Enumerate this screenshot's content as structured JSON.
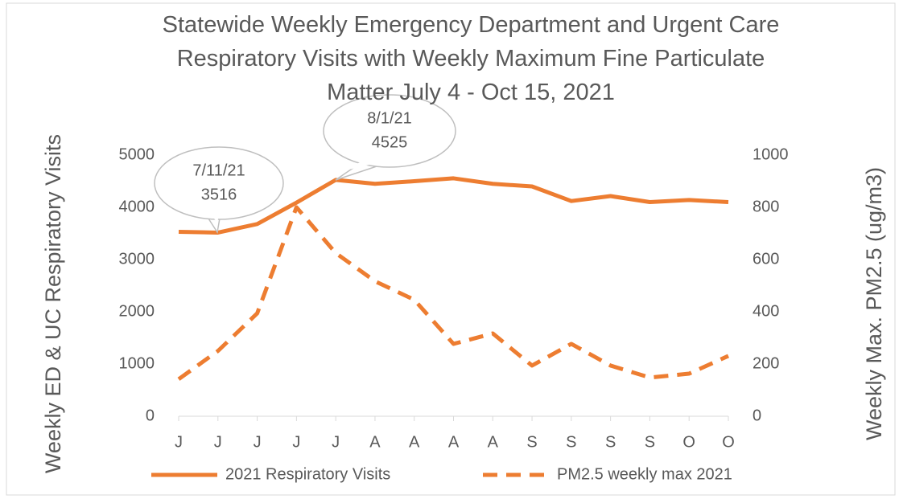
{
  "chart_data": {
    "type": "line",
    "title": "Statewide Weekly Emergency Department and Urgent Care Respiratory Visits with Weekly Maximum Fine Particulate Matter July 4 - Oct 15, 2021",
    "ylabel": "Weekly ED & UC Respiratory Visits",
    "y2label": "Weekly Max. PM2.5 (ug/m3)",
    "categories": [
      "J",
      "J",
      "J",
      "J",
      "J",
      "A",
      "A",
      "A",
      "A",
      "S",
      "S",
      "S",
      "S",
      "O",
      "O"
    ],
    "series": [
      {
        "name": "2021  Respiratory Visits",
        "color": "#ed7d31",
        "dash": false,
        "values": [
          3530,
          3516,
          3680,
          4090,
          4525,
          4450,
          4500,
          4555,
          4450,
          4400,
          4120,
          4215,
          4100,
          4140,
          4100
        ]
      },
      {
        "name": "PM2.5 weekly max 2021",
        "color": "#ed7d31",
        "dash": true,
        "axis": "y2",
        "values": [
          142,
          250,
          394,
          800,
          625,
          517,
          446,
          277,
          317,
          194,
          277,
          194,
          148,
          163,
          231
        ]
      }
    ],
    "ylim": [
      0,
      5000
    ],
    "yticks": [
      0,
      1000,
      2000,
      3000,
      4000,
      5000
    ],
    "y2lim": [
      0,
      1000
    ],
    "y2ticks": [
      0,
      200,
      400,
      600,
      800,
      1000
    ],
    "grid": false,
    "legend": "bottom",
    "annotations": [
      {
        "label": "7/11/21",
        "value": 3516
      },
      {
        "label": "8/1/21",
        "value": 4525
      }
    ]
  }
}
